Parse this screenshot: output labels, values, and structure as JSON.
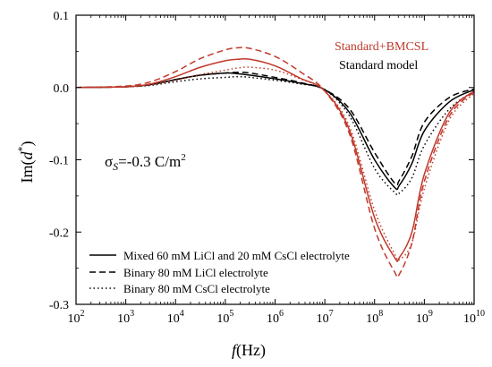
{
  "chart_data": {
    "type": "line",
    "xlabel_italic": "f",
    "xlabel_unit": "(Hz)",
    "ylabel_base": "Im(",
    "ylabel_var": "d",
    "ylabel_sup": "*",
    "ylabel_close": ")",
    "x_scale": "log",
    "xlim": [
      100,
      10000000000
    ],
    "ylim": [
      -0.3,
      0.1
    ],
    "grid": false,
    "x_ticks": [
      {
        "exp": 2,
        "base": "10",
        "sup": "2"
      },
      {
        "exp": 3,
        "base": "10",
        "sup": "3"
      },
      {
        "exp": 4,
        "base": "10",
        "sup": "4"
      },
      {
        "exp": 5,
        "base": "10",
        "sup": "5"
      },
      {
        "exp": 6,
        "base": "10",
        "sup": "6"
      },
      {
        "exp": 7,
        "base": "10",
        "sup": "7"
      },
      {
        "exp": 8,
        "base": "10",
        "sup": "8"
      },
      {
        "exp": 9,
        "base": "10",
        "sup": "9"
      },
      {
        "exp": 10,
        "base": "10",
        "sup": "10"
      }
    ],
    "y_ticks": [
      {
        "value": 0.1,
        "label": "0.1"
      },
      {
        "value": 0.0,
        "label": "0.0"
      },
      {
        "value": -0.1,
        "label": "-0.1"
      },
      {
        "value": -0.2,
        "label": "-0.2"
      },
      {
        "value": -0.3,
        "label": "-0.3"
      }
    ],
    "annotation": {
      "sigma": "σ",
      "sub": "S",
      "text": "=-0.3 C/m",
      "sup": "2"
    },
    "model_legend": [
      {
        "name": "Standard+BMCSL",
        "color": "#c0392b"
      },
      {
        "name": "Standard model",
        "color": "#000000"
      }
    ],
    "style_legend": [
      {
        "name": "Mixed 60 mM LiCl and 20 mM CsCl electrolyte",
        "dash": "solid"
      },
      {
        "name": "Binary 80 mM LiCl electrolyte",
        "dash": "dashed"
      },
      {
        "name": "Binary 80 mM CsCl electrolyte",
        "dash": "dotted"
      }
    ],
    "series": [
      {
        "model": "Standard model",
        "dash": "solid",
        "color": "#000000",
        "x": [
          100,
          1000,
          3162,
          10000,
          31623,
          100000,
          177828,
          316228,
          1000000,
          3162278,
          10000000,
          31622777,
          100000000,
          177828,
          251189000,
          316228000,
          562341000,
          1000000000,
          3162278000,
          10000000000
        ],
        "y": [
          0.0,
          0.001,
          0.004,
          0.011,
          0.017,
          0.02,
          0.019,
          0.017,
          0.012,
          0.006,
          -0.003,
          -0.035,
          -0.1,
          null,
          -0.138,
          -0.135,
          -0.105,
          -0.06,
          -0.02,
          -0.003
        ]
      },
      {
        "model": "Standard model",
        "dash": "dashed",
        "color": "#000000",
        "x": [
          100,
          1000,
          3162,
          10000,
          31623,
          100000,
          177828,
          316228,
          1000000,
          3162278,
          10000000,
          31622777,
          100000000,
          251189000,
          316228000,
          562341000,
          1000000000,
          3162278000,
          10000000000
        ],
        "y": [
          0.0,
          0.001,
          0.004,
          0.011,
          0.017,
          0.02,
          0.021,
          0.02,
          0.014,
          0.007,
          -0.003,
          -0.03,
          -0.09,
          -0.132,
          -0.128,
          -0.095,
          -0.048,
          -0.014,
          -0.002
        ]
      },
      {
        "model": "Standard model",
        "dash": "dotted",
        "color": "#000000",
        "x": [
          100,
          1000,
          3162,
          10000,
          31623,
          100000,
          177828,
          316228,
          1000000,
          3162278,
          10000000,
          31622777,
          100000000,
          251189000,
          316228000,
          562341000,
          1000000000,
          3162278000,
          10000000000
        ],
        "y": [
          0.0,
          0.001,
          0.003,
          0.008,
          0.012,
          0.014,
          0.015,
          0.014,
          0.01,
          0.005,
          -0.003,
          -0.04,
          -0.112,
          -0.145,
          -0.146,
          -0.125,
          -0.08,
          -0.03,
          -0.005
        ]
      },
      {
        "model": "Standard+BMCSL",
        "dash": "solid",
        "color": "#c0392b",
        "x": [
          100,
          1000,
          3162,
          10000,
          31623,
          100000,
          177828,
          316228,
          1000000,
          3162278,
          10000000,
          31622777,
          100000000,
          251189000,
          316228000,
          562341000,
          1000000000,
          3162278000,
          10000000000
        ],
        "y": [
          0.0,
          0.001,
          0.005,
          0.015,
          0.028,
          0.037,
          0.039,
          0.039,
          0.03,
          0.013,
          -0.005,
          -0.06,
          -0.18,
          -0.235,
          -0.235,
          -0.2,
          -0.12,
          -0.035,
          -0.005
        ]
      },
      {
        "model": "Standard+BMCSL",
        "dash": "dashed",
        "color": "#c0392b",
        "x": [
          100,
          1000,
          3162,
          10000,
          31623,
          100000,
          177828,
          316228,
          1000000,
          3162278,
          10000000,
          31622777,
          100000000,
          251189000,
          316228000,
          562341000,
          1000000000,
          3162278000,
          10000000000
        ],
        "y": [
          0.0,
          0.002,
          0.008,
          0.022,
          0.04,
          0.052,
          0.055,
          0.054,
          0.043,
          0.022,
          -0.005,
          -0.065,
          -0.195,
          -0.255,
          -0.258,
          -0.215,
          -0.13,
          -0.04,
          -0.006
        ]
      },
      {
        "model": "Standard+BMCSL",
        "dash": "dotted",
        "color": "#c0392b",
        "x": [
          100,
          1000,
          3162,
          10000,
          31623,
          100000,
          177828,
          316228,
          1000000,
          3162278,
          10000000,
          31622777,
          100000000,
          251189000,
          316228000,
          562341000,
          1000000000,
          3162278000,
          10000000000
        ],
        "y": [
          0.0,
          0.001,
          0.004,
          0.01,
          0.018,
          0.024,
          0.027,
          0.028,
          0.024,
          0.012,
          -0.005,
          -0.055,
          -0.17,
          -0.23,
          -0.238,
          -0.215,
          -0.14,
          -0.045,
          -0.008
        ]
      }
    ]
  }
}
